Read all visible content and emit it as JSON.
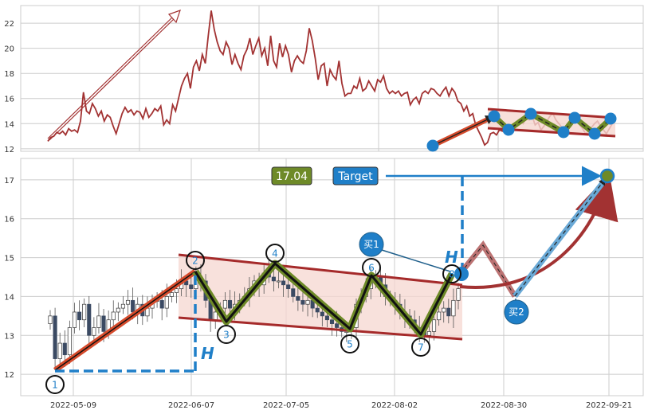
{
  "chart_data": [
    {
      "type": "line",
      "panel": "overview",
      "ylim": [
        11.8,
        23.4
      ],
      "yticks": [
        "12",
        "14",
        "16",
        "18",
        "20",
        "22"
      ],
      "grid": true,
      "color": "#a23232",
      "series": [
        {
          "values": [
            12.6,
            12.9,
            13.0,
            13.3,
            13.2,
            13.4,
            13.1,
            13.6,
            13.4,
            13.5,
            13.3,
            14.2,
            16.5,
            15.0,
            14.8,
            15.6,
            15.2,
            14.6,
            15.0,
            14.2,
            14.7,
            14.5,
            13.8,
            13.2,
            14.0,
            14.8,
            15.3,
            14.9,
            15.1,
            14.7,
            15.0,
            14.9,
            14.4,
            15.2,
            14.5,
            14.8,
            15.2,
            15.0,
            15.4,
            13.9,
            14.3,
            14.0,
            15.5,
            15.0,
            16.0,
            17.0,
            17.6,
            18.0,
            16.8,
            18.5,
            19.0,
            18.2,
            19.5,
            18.8,
            21.0,
            23.0,
            21.5,
            20.5,
            19.8,
            19.5,
            20.5,
            20.0,
            18.7,
            19.5,
            18.8,
            18.3,
            19.4,
            19.9,
            20.8,
            19.5,
            20.2,
            20.8,
            19.4,
            20.0,
            18.6,
            21.0,
            19.0,
            18.5,
            20.4,
            19.3,
            20.2,
            19.5,
            18.1,
            19.0,
            19.4,
            19.0,
            18.8,
            19.8,
            21.6,
            20.6,
            19.2,
            17.5,
            18.6,
            18.8,
            17.0,
            18.3,
            17.8,
            17.5,
            19.0,
            17.2,
            16.2,
            16.4,
            16.4,
            17.0,
            16.8,
            17.6,
            16.6,
            16.8,
            17.4,
            17.0,
            16.6,
            17.5,
            17.3,
            17.8,
            16.8,
            16.4,
            16.6,
            16.4,
            16.6,
            16.2,
            16.4,
            16.5,
            15.5,
            15.9,
            16.1,
            15.6,
            16.4,
            16.6,
            16.4,
            16.8,
            16.7,
            16.4,
            16.2,
            16.6,
            16.9,
            16.2,
            16.8,
            16.5,
            15.8,
            15.6,
            15.0,
            15.4,
            14.6,
            14.8,
            13.9,
            13.4,
            12.9,
            12.3,
            12.5,
            13.2,
            13.3,
            13.1,
            13.5,
            13.4,
            13.7,
            13.6,
            13.4,
            13.9,
            13.8,
            14.2,
            14.0,
            14.5,
            14.3,
            14.6,
            13.9,
            14.1,
            13.5,
            13.8,
            14.2,
            14.6,
            14.8,
            14.3,
            14.0,
            13.7,
            13.5,
            13.8,
            14.1,
            14.5,
            14.2,
            13.9,
            13.6,
            13.2,
            13.4,
            13.7,
            14.0,
            14.2,
            13.8,
            13.5,
            13.2,
            13.6,
            14.0,
            14.3
          ]
        }
      ]
    },
    {
      "type": "candlestick",
      "panel": "detail",
      "ylim": [
        11.45,
        17.55
      ],
      "yticks": [
        "12",
        "13",
        "14",
        "15",
        "16",
        "17"
      ],
      "xticks": [
        "2022-05-09",
        "2022-06-07",
        "2022-07-05",
        "2022-08-02",
        "2022-08-30",
        "2022-09-21"
      ],
      "grid": true,
      "series": [
        {
          "values": [
            13.5,
            12.4,
            12.8,
            12.5,
            13.2,
            13.6,
            13.4,
            13.8,
            13.0,
            13.2,
            13.5,
            13.1,
            13.4,
            13.6,
            13.7,
            13.8,
            13.9,
            13.6,
            13.8,
            13.5,
            13.7,
            13.9,
            13.9,
            13.7,
            14.0,
            14.1,
            14.2,
            14.4,
            14.3,
            14.2,
            14.5,
            14.4,
            13.9,
            13.4,
            13.6,
            13.7,
            13.9,
            13.7,
            13.8,
            13.9,
            14.0,
            14.2,
            14.4,
            14.3,
            14.6,
            14.5,
            14.4,
            14.4,
            14.3,
            14.2,
            14.0,
            13.9,
            13.8,
            13.9,
            13.7,
            13.6,
            13.5,
            13.4,
            13.3,
            13.2,
            13.1,
            13.1,
            13.2,
            13.8,
            14.0,
            14.2,
            14.4,
            14.5,
            14.3,
            14.0,
            13.9,
            13.8,
            13.6,
            13.5,
            13.4,
            13.2,
            13.1,
            13.0,
            13.1,
            13.4,
            13.6,
            13.7,
            13.5,
            13.9,
            14.2
          ]
        }
      ]
    }
  ],
  "annotations": {
    "points": [
      "1",
      "2",
      "3",
      "4",
      "5",
      "6",
      "7",
      "8"
    ],
    "height_label": "H",
    "target_value": "17.04",
    "target_label": "Target",
    "buy1": "买1",
    "buy2": "买2"
  },
  "colors": {
    "bg": "#ffffff",
    "grid": "#cccccc",
    "price_line": "#a23232",
    "trend_red": "#d64b2c",
    "channel": "#a52a2a",
    "channel_fill": "#f6d7d0",
    "zigzag": "#6e8a28",
    "blue": "#1f7fc8",
    "candle_dark": "#3b4a63",
    "value_box": "#6e8a28",
    "target_box": "#1f7fc8"
  }
}
